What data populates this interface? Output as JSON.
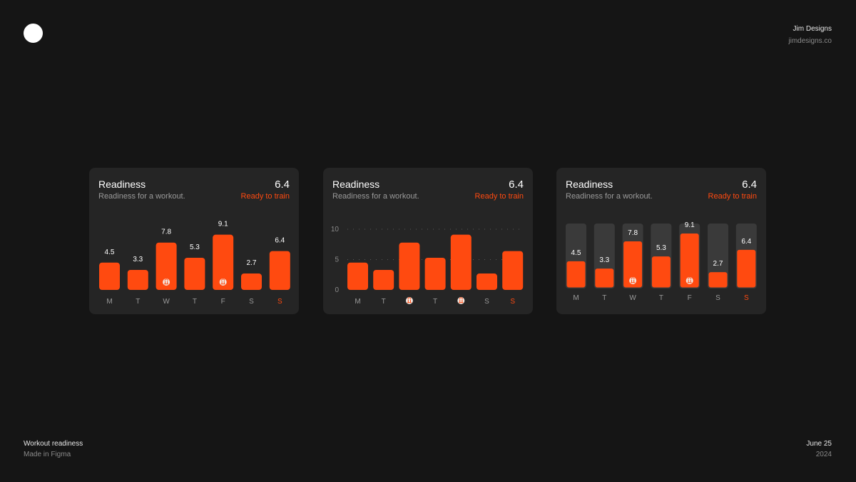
{
  "header": {
    "brand_name": "Jim Designs",
    "brand_site": "jimdesigns.co"
  },
  "footer": {
    "left_title": "Workout readiness",
    "left_sub": "Made in Figma",
    "right_title": "June 25",
    "right_sub": "2024"
  },
  "colors": {
    "accent": "#ff4a10",
    "card": "#252525",
    "background": "#151515",
    "track": "#3a3a3a"
  },
  "cards": [
    {
      "title": "Readiness",
      "subtitle": "Readiness for a workout.",
      "score": "6.4",
      "status": "Ready to train"
    },
    {
      "title": "Readiness",
      "subtitle": "Readiness for a workout.",
      "score": "6.4",
      "status": "Ready to train"
    },
    {
      "title": "Readiness",
      "subtitle": "Readiness for a workout.",
      "score": "6.4",
      "status": "Ready to train"
    }
  ],
  "chart_data": [
    {
      "type": "bar",
      "variant": "labeled",
      "categories": [
        "M",
        "T",
        "W",
        "T",
        "F",
        "S",
        "S"
      ],
      "values": [
        4.5,
        3.3,
        7.8,
        5.3,
        9.1,
        2.7,
        6.4
      ],
      "value_labels": [
        "4.5",
        "3.3",
        "7.8",
        "5.3",
        "9.1",
        "2.7",
        "6.4"
      ],
      "workout_days": [
        2,
        4
      ],
      "highlight_index": 6,
      "ylim": [
        0,
        10
      ]
    },
    {
      "type": "bar",
      "variant": "axis",
      "categories": [
        "M",
        "T",
        "W",
        "T",
        "F",
        "S",
        "S"
      ],
      "values": [
        4.5,
        3.3,
        7.8,
        5.3,
        9.1,
        2.7,
        6.4
      ],
      "yticks": [
        "0",
        "5",
        "10"
      ],
      "workout_days": [
        2,
        4
      ],
      "highlight_index": 6,
      "ylim": [
        0,
        10
      ],
      "grid": true
    },
    {
      "type": "bar",
      "variant": "track",
      "categories": [
        "M",
        "T",
        "W",
        "T",
        "F",
        "S",
        "S"
      ],
      "values": [
        4.5,
        3.3,
        7.8,
        5.3,
        9.1,
        2.7,
        6.4
      ],
      "value_labels": [
        "4.5",
        "3.3",
        "7.8",
        "5.3",
        "9.1",
        "2.7",
        "6.4"
      ],
      "workout_days": [
        2,
        4
      ],
      "highlight_index": 6,
      "ylim": [
        0,
        10
      ]
    }
  ]
}
